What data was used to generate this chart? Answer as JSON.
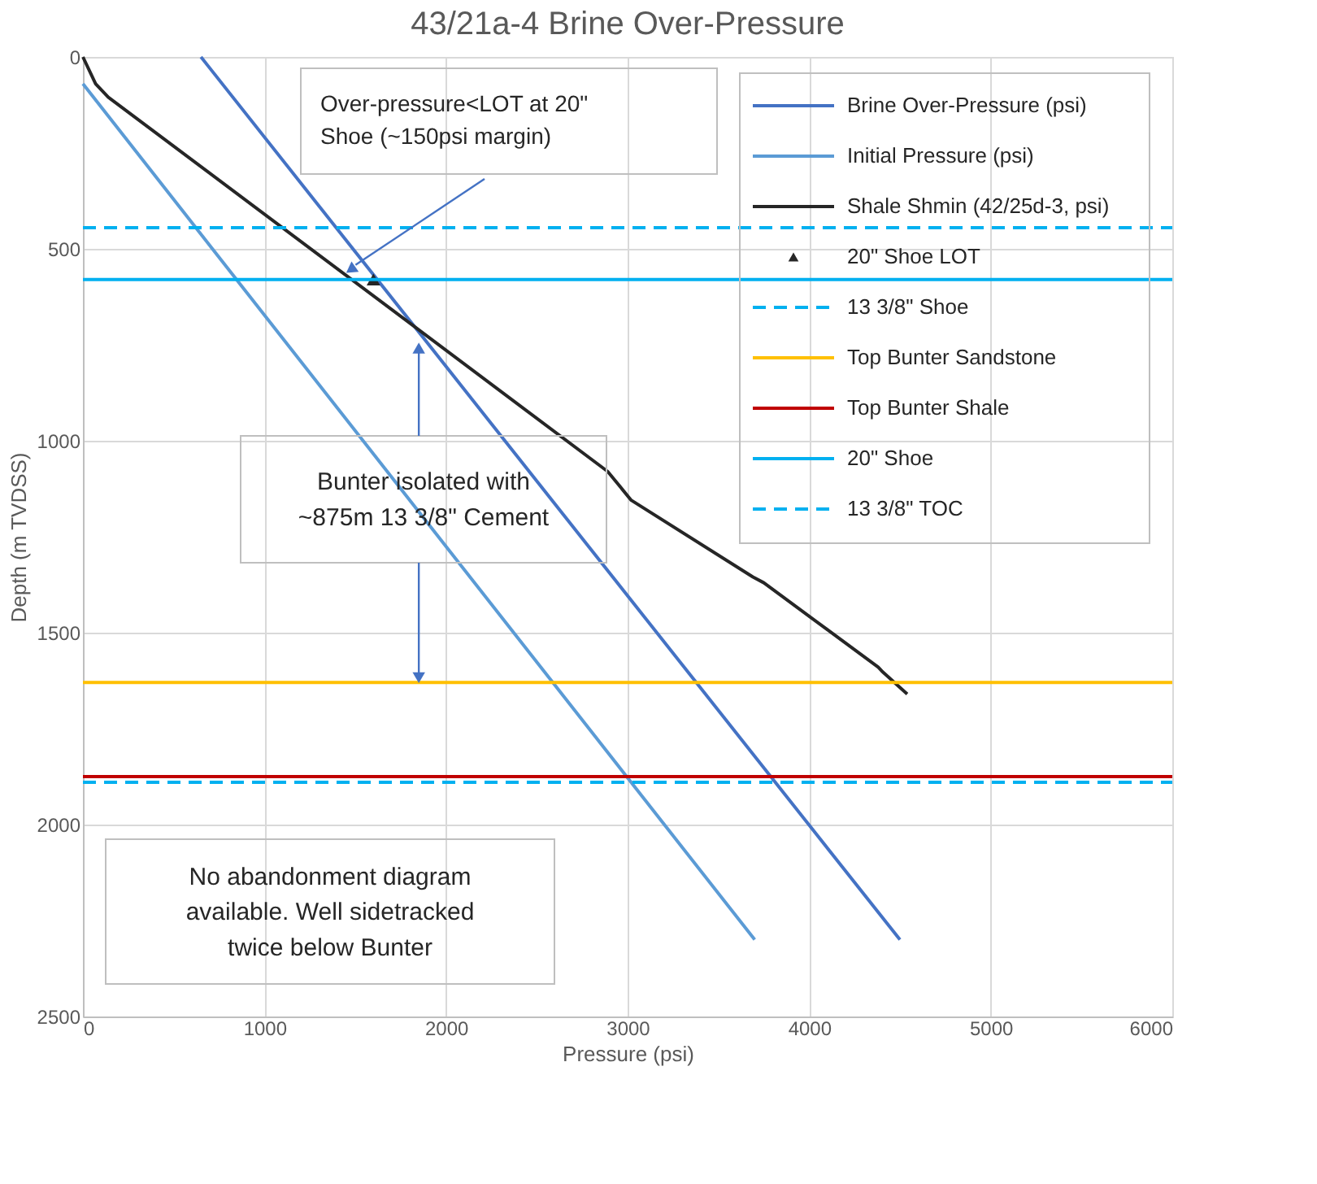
{
  "chart_data": {
    "type": "line",
    "title": "43/21a-4 Brine Over-Pressure",
    "xlabel": "Pressure (psi)",
    "ylabel": "Depth (m TVDSS)",
    "xlim": [
      0,
      6000
    ],
    "xticks": [
      0,
      1000,
      2000,
      3000,
      4000,
      5000,
      6000
    ],
    "ylim": [
      2500,
      0
    ],
    "yticks": [
      0,
      500,
      1000,
      1500,
      2000,
      2500
    ],
    "grid": true,
    "legend": "top right",
    "line_style": "solid",
    "series": [
      {
        "name": "Brine Over-Pressure (psi)",
        "color": "#4472c4",
        "x": [
          650,
          4500
        ],
        "values": [
          0,
          2300
        ]
      },
      {
        "name": "Initial Pressure (psi)",
        "color": "#5b9bd5",
        "x": [
          0,
          3700
        ],
        "values": [
          70,
          2300
        ]
      },
      {
        "name": "Shale Shmin (42/25d-3, psi)",
        "color": "#262626",
        "x": [
          0,
          70,
          140,
          2890,
          3020,
          3690,
          3750,
          4380,
          4400,
          4540
        ],
        "values": [
          0,
          70,
          105,
          1080,
          1155,
          1355,
          1370,
          1590,
          1600,
          1660
        ]
      },
      {
        "name": "20\" Shoe LOT",
        "color": "#262626",
        "type": "scatter",
        "marker": "triangle",
        "x": [
          1600
        ],
        "values": [
          580
        ]
      }
    ],
    "ref_lines": [
      {
        "axis": "y",
        "value": 1890,
        "label": "13 3/8\" Shoe",
        "color": "#00b0f0",
        "line_style": "dashed"
      },
      {
        "axis": "y",
        "value": 1630,
        "label": "Top Bunter Sandstone",
        "color": "#ffc000"
      },
      {
        "axis": "y",
        "value": 1875,
        "label": "Top Bunter Shale",
        "color": "#c00000"
      },
      {
        "axis": "y",
        "value": 580,
        "label": "20\" Shoe",
        "color": "#00b0f0"
      },
      {
        "axis": "y",
        "value": 445,
        "label": "13 3/8\" TOC",
        "color": "#00b0f0",
        "line_style": "dashed"
      }
    ],
    "annotations": [
      "Over-pressure<LOT at 20\"\nShoe (~150psi margin)",
      {
        "text": "Bunter isolated with\n~875m  13 3/8\" Cement",
        "x": 1850,
        "y": 1630
      },
      "No abandonment diagram\navailable.  Well sidetracked\ntwice below Bunter"
    ]
  }
}
